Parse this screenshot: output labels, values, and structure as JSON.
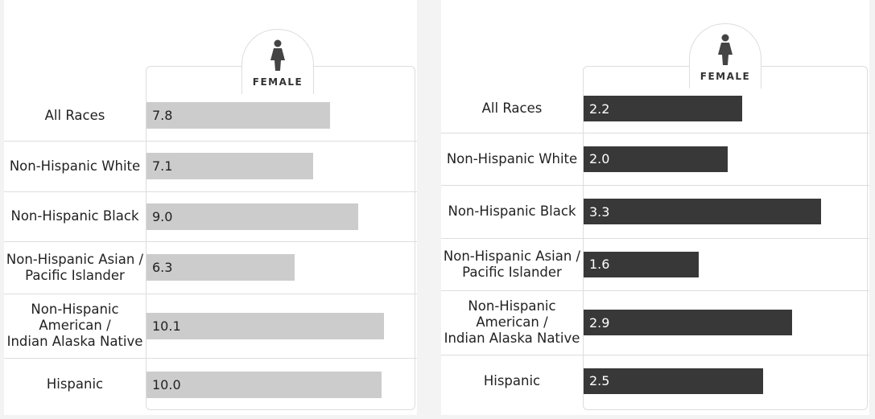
{
  "chart_data": [
    {
      "type": "bar",
      "title": "FEMALE",
      "categories": [
        "All Races",
        "Non-Hispanic White",
        "Non-Hispanic Black",
        "Non-Hispanic Asian /\nPacific Islander",
        "Non-Hispanic\nAmerican /\nIndian Alaska Native",
        "Hispanic"
      ],
      "values": [
        7.8,
        7.1,
        9.0,
        6.3,
        10.1,
        10.0
      ],
      "value_labels": [
        "7.8",
        "7.1",
        "9.0",
        "6.3",
        "10.1",
        "10.0"
      ],
      "color": "#cccccc"
    },
    {
      "type": "bar",
      "title": "FEMALE",
      "categories": [
        "All Races",
        "Non-Hispanic White",
        "Non-Hispanic Black",
        "Non-Hispanic Asian /\nPacific Islander",
        "Non-Hispanic\nAmerican /\nIndian Alaska Native",
        "Hispanic"
      ],
      "values": [
        2.2,
        2.0,
        3.3,
        1.6,
        2.9,
        2.5
      ],
      "value_labels": [
        "2.2",
        "2.0",
        "3.3",
        "1.6",
        "2.9",
        "2.5"
      ],
      "color": "#383838"
    }
  ]
}
